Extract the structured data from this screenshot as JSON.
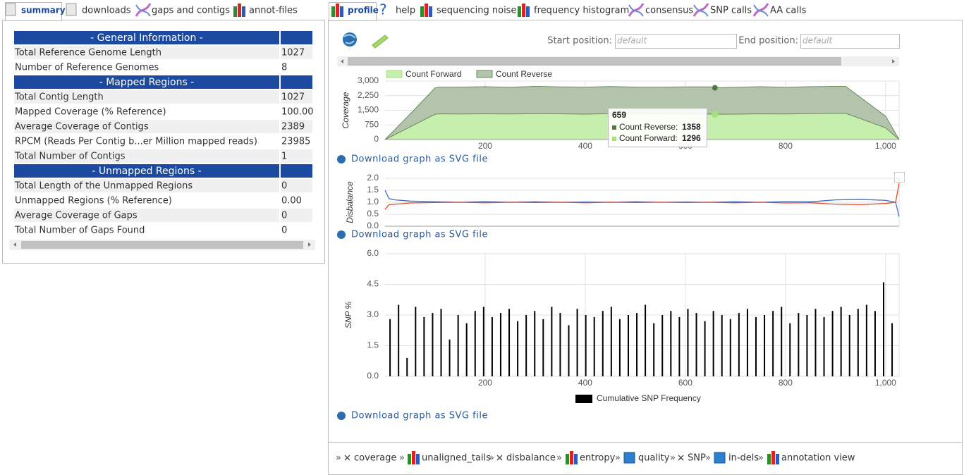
{
  "left_tabs": [
    "summary",
    "downloads",
    "gaps and contigs",
    "annot-files"
  ],
  "summary_table": {
    "sections": [
      {
        "title": "- General Information -",
        "rows": [
          [
            "Total Reference Genome Length",
            "1027"
          ],
          [
            "Number of Reference Genomes",
            "8"
          ]
        ]
      },
      {
        "title": "- Mapped Regions -",
        "rows": [
          [
            "Total Contig Length",
            "1027"
          ],
          [
            "Mapped Coverage (% Reference)",
            "100.00"
          ],
          [
            "Average Coverage of Contigs",
            "2389"
          ],
          [
            "RPCM (Reads Per Contig b...er Million mapped reads)",
            "23985"
          ],
          [
            "Total Number of Contigs",
            "1"
          ]
        ]
      },
      {
        "title": "- Unmapped Regions -",
        "rows": [
          [
            "Total Length of the Unmapped Regions",
            "0"
          ],
          [
            "Unmapped Regions (% Reference)",
            "0.00"
          ],
          [
            "Average Coverage of Gaps",
            "0"
          ],
          [
            "Total Number of Gaps Found",
            "0"
          ]
        ]
      }
    ]
  },
  "right_tabs": [
    "profile",
    "help",
    "sequencing noise",
    "frequency histogram",
    "consensus",
    "SNP calls",
    "AA calls"
  ],
  "controls": {
    "start_label": "Start position:",
    "start_placeholder": "default",
    "end_label": "End position:",
    "end_placeholder": "default"
  },
  "download_links": [
    "Download graph as SVG file",
    "Download graph as SVG file",
    "Download graph as SVG file"
  ],
  "chart_data": [
    {
      "type": "area",
      "stacked": true,
      "y_label": "Coverage",
      "grid": true,
      "x": [
        0,
        50,
        100,
        110,
        150,
        200,
        250,
        300,
        350,
        400,
        450,
        500,
        550,
        600,
        650,
        659,
        700,
        750,
        800,
        850,
        900,
        920,
        1000,
        1027
      ],
      "xlim": [
        0,
        1027
      ],
      "xticks": [
        200,
        400,
        600,
        800,
        {
          "value": 1000,
          "label": "1,000"
        }
      ],
      "ylim": [
        0,
        3000
      ],
      "yticks": [
        0,
        750,
        {
          "value": 1500,
          "label": "1,500"
        },
        {
          "value": 2250,
          "label": "2,250"
        },
        {
          "value": 3000,
          "label": "3,000"
        }
      ],
      "series": [
        {
          "name": "Count Forward",
          "color": "#c6efae",
          "values": [
            0,
            650,
            1300,
            1320,
            1310,
            1320,
            1310,
            1330,
            1320,
            1300,
            1330,
            1310,
            1320,
            1300,
            1310,
            1296,
            1300,
            1320,
            1310,
            1330,
            1340,
            1350,
            600,
            0
          ]
        },
        {
          "name": "Count Reverse",
          "color": "#b4c4ac",
          "values": [
            0,
            650,
            1350,
            1370,
            1380,
            1390,
            1370,
            1400,
            1380,
            1390,
            1390,
            1380,
            1370,
            1400,
            1390,
            1358,
            1380,
            1390,
            1370,
            1380,
            1390,
            1380,
            600,
            0
          ]
        }
      ],
      "tooltip": {
        "x": 659,
        "items": [
          {
            "label": "Count Reverse:",
            "value": 1358,
            "color": "#4f7a40"
          },
          {
            "label": "Count Forward:",
            "value": 1296,
            "color": "#a6e07c"
          }
        ]
      }
    },
    {
      "type": "line",
      "y_label": "Disbalance",
      "grid": true,
      "x": [
        0,
        8,
        20,
        50,
        100,
        150,
        200,
        250,
        300,
        350,
        400,
        450,
        500,
        550,
        600,
        650,
        700,
        750,
        800,
        850,
        900,
        950,
        1000,
        1020,
        1027
      ],
      "xlim": [
        0,
        1027
      ],
      "ylim": [
        0,
        2
      ],
      "yticks": [
        {
          "value": 0,
          "label": "0.0"
        },
        0.5,
        {
          "value": 1,
          "label": "1.0"
        },
        1.5,
        {
          "value": 2,
          "label": "2.0"
        }
      ],
      "series": [
        {
          "color": "#3a6fc4",
          "values": [
            1.5,
            1.15,
            1.1,
            1.05,
            1.02,
            1.0,
            1.03,
            1.0,
            1.02,
            1.0,
            1.01,
            1.0,
            1.02,
            1.0,
            1.01,
            1.0,
            1.02,
            1.0,
            1.03,
            1.02,
            1.1,
            1.12,
            1.08,
            1.0,
            0.4
          ]
        },
        {
          "color": "#e8472a",
          "values": [
            0.7,
            0.9,
            0.92,
            0.97,
            0.99,
            1.0,
            0.98,
            1.0,
            0.99,
            1.0,
            0.98,
            1.0,
            0.99,
            1.0,
            0.99,
            1.0,
            0.98,
            1.0,
            0.97,
            0.98,
            0.92,
            0.9,
            0.95,
            1.0,
            1.8
          ]
        }
      ]
    },
    {
      "type": "bar",
      "y_label": "SNP %",
      "grid": true,
      "x": [
        10,
        27,
        44,
        61,
        78,
        95,
        112,
        129,
        146,
        163,
        180,
        197,
        214,
        231,
        248,
        265,
        282,
        299,
        316,
        333,
        350,
        367,
        384,
        401,
        418,
        435,
        452,
        469,
        486,
        503,
        520,
        537,
        554,
        571,
        588,
        605,
        622,
        639,
        656,
        673,
        690,
        707,
        724,
        741,
        758,
        775,
        792,
        809,
        826,
        843,
        860,
        877,
        894,
        911,
        928,
        945,
        962,
        979,
        996,
        1013
      ],
      "xlim": [
        0,
        1027
      ],
      "xticks": [
        200,
        400,
        600,
        800,
        {
          "value": 1000,
          "label": "1,000"
        }
      ],
      "ylim": [
        0,
        6
      ],
      "yticks": [
        {
          "value": 0,
          "label": "0.0"
        },
        1.5,
        {
          "value": 3,
          "label": "3.0"
        },
        4.5,
        {
          "value": 6,
          "label": "6.0"
        }
      ],
      "series": [
        {
          "name": "Cumulative SNP Frequency",
          "color": "#000000",
          "values": [
            2.8,
            3.5,
            0.9,
            3.4,
            2.9,
            3.1,
            3.3,
            1.8,
            3.0,
            2.6,
            3.2,
            3.4,
            2.9,
            3.1,
            3.3,
            2.7,
            3.0,
            3.2,
            2.8,
            3.4,
            3.1,
            2.5,
            3.3,
            3.0,
            2.9,
            3.2,
            3.4,
            2.8,
            3.0,
            3.1,
            3.5,
            2.6,
            3.0,
            3.2,
            2.9,
            3.3,
            3.1,
            2.7,
            3.2,
            3.0,
            2.8,
            3.1,
            3.3,
            2.9,
            3.0,
            3.2,
            3.4,
            2.6,
            3.1,
            3.0,
            3.3,
            2.9,
            3.2,
            3.4,
            3.0,
            3.3,
            3.5,
            3.2,
            4.6,
            2.6
          ]
        }
      ]
    }
  ],
  "toolbar": {
    "separator": "»",
    "items": [
      "coverage",
      "unaligned_tails",
      "disbalance",
      "entropy",
      "quality",
      "SNP",
      "in-dels",
      "annotation view"
    ]
  }
}
